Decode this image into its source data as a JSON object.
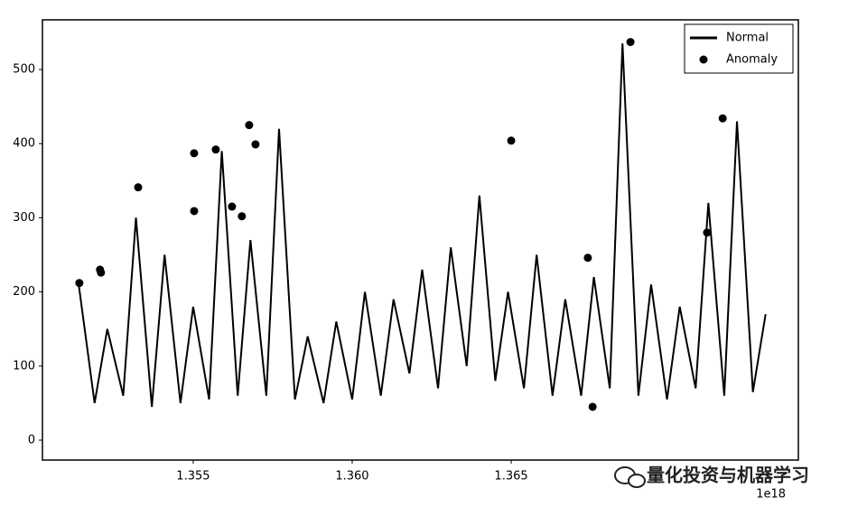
{
  "chart_data": {
    "type": "line",
    "x_offset_label": "1e18",
    "watermark": "量化投资与机器学习",
    "xlim": [
      1.35026,
      1.37403
    ],
    "ylim": [
      -26.8,
      566.9
    ],
    "xticks": [
      1.355,
      {
        "value": 1.36,
        "label": "1.360"
      },
      1.365
    ],
    "yticks": [
      0,
      100,
      200,
      300,
      400,
      500
    ],
    "legend": "upper right",
    "series": [
      {
        "name": "Normal",
        "type": "line",
        "color": "#000000",
        "x": [
          1.3514,
          1.3519,
          1.3523,
          1.3528,
          1.3532,
          1.3537,
          1.3541,
          1.3546,
          1.355,
          1.3555,
          1.3559,
          1.3564,
          1.3568,
          1.3573,
          1.3577,
          1.3582,
          1.3586,
          1.3591,
          1.3595,
          1.36,
          1.3604,
          1.3609,
          1.3613,
          1.3618,
          1.3622,
          1.3627,
          1.3631,
          1.3636,
          1.364,
          1.3645,
          1.3649,
          1.3654,
          1.3658,
          1.3663,
          1.3667,
          1.3672,
          1.3676,
          1.3681,
          1.3685,
          1.369,
          1.3694,
          1.3699,
          1.3703,
          1.3708,
          1.3712,
          1.3717,
          1.3721,
          1.3726,
          1.373
        ],
        "values": [
          210,
          50,
          150,
          60,
          300,
          45,
          250,
          50,
          180,
          55,
          390,
          60,
          270,
          60,
          420,
          55,
          140,
          50,
          160,
          55,
          200,
          60,
          190,
          90,
          230,
          70,
          260,
          100,
          330,
          80,
          200,
          70,
          250,
          60,
          190,
          60,
          220,
          70,
          535,
          60,
          210,
          55,
          180,
          70,
          320,
          60,
          430,
          65,
          170
        ]
      },
      {
        "name": "Anomaly",
        "type": "scatter",
        "color": "#000000",
        "x": [
          1.35142,
          1.35207,
          1.3521,
          1.35327,
          1.35503,
          1.35503,
          1.35571,
          1.35622,
          1.35653,
          1.35676,
          1.35696,
          1.365,
          1.36741,
          1.36756,
          1.36875,
          1.37116,
          1.37165
        ],
        "values": [
          212,
          230,
          226,
          341,
          387,
          309,
          392,
          315,
          302,
          425,
          399,
          404,
          246,
          45,
          537,
          280,
          434
        ]
      }
    ]
  }
}
